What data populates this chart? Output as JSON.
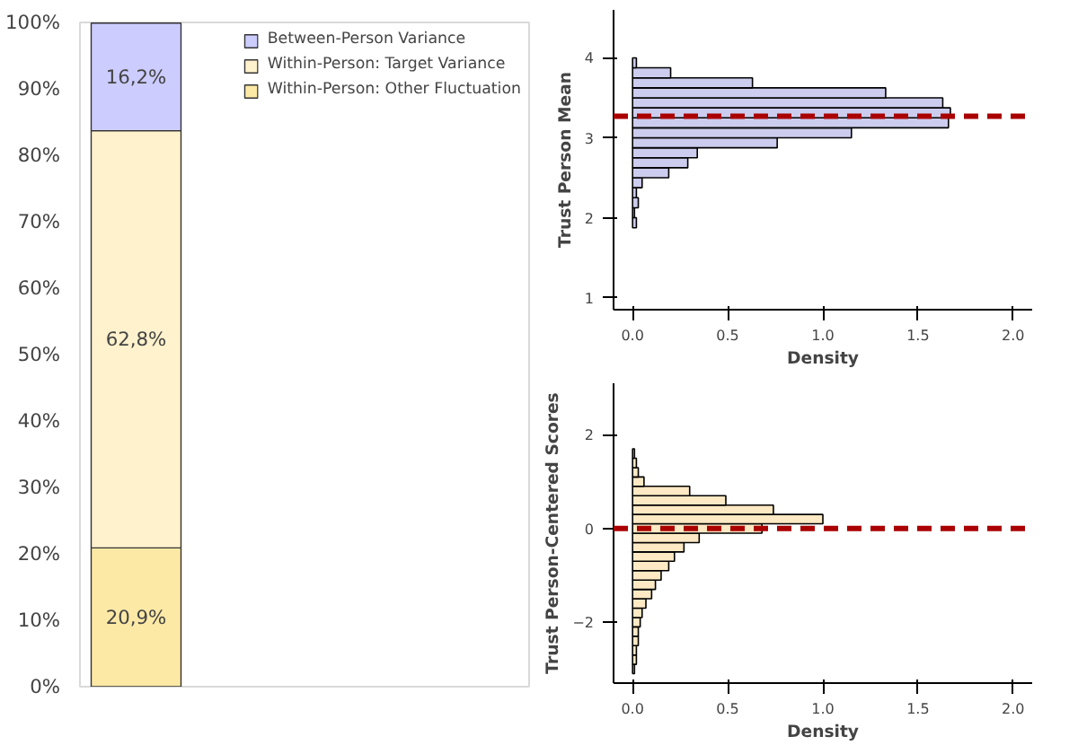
{
  "chart_data": [
    {
      "type": "bar",
      "stacked": true,
      "categories": [
        null
      ],
      "ylim": [
        0,
        100
      ],
      "yticks": [
        {
          "value": 0,
          "label": "0%"
        },
        {
          "value": 10,
          "label": "10%"
        },
        {
          "value": 20,
          "label": "20%"
        },
        {
          "value": 30,
          "label": "30%"
        },
        {
          "value": 40,
          "label": "40%"
        },
        {
          "value": 50,
          "label": "50%"
        },
        {
          "value": 60,
          "label": "60%"
        },
        {
          "value": 70,
          "label": "70%"
        },
        {
          "value": 80,
          "label": "80%"
        },
        {
          "value": 90,
          "label": "90%"
        },
        {
          "value": 100,
          "label": "100%"
        }
      ],
      "tick_labels": "y",
      "grid": false,
      "legend": "top",
      "series": [
        {
          "name": "Within-Person: Other Fluctuation",
          "color": "#fde9a6",
          "values": [
            20.9
          ],
          "value_labels": [
            "20,9%"
          ]
        },
        {
          "name": "Within-Person: Target Variance",
          "color": "#fff2cc",
          "values": [
            62.8
          ],
          "value_labels": [
            "62,8%"
          ]
        },
        {
          "name": "Between-Person Variance",
          "color": "#ccccff",
          "values": [
            16.2
          ],
          "value_labels": [
            "16,2%"
          ]
        }
      ]
    },
    {
      "type": "histogram",
      "orientation": "horizontal",
      "xlabel": "Density",
      "ylabel": "Trust Person Mean",
      "color": "#ccccee",
      "bins": [
        1.875,
        2.0,
        2.125,
        2.25,
        2.375,
        2.5,
        2.625,
        2.75,
        2.875,
        3.0,
        3.125,
        3.25,
        3.375,
        3.5,
        3.625,
        3.75,
        3.875,
        4.0
      ],
      "values": [
        0.02,
        0.01,
        0.03,
        0.02,
        0.05,
        0.19,
        0.29,
        0.34,
        0.76,
        1.15,
        1.66,
        1.67,
        1.63,
        1.33,
        0.63,
        0.2,
        0.02
      ],
      "xlim": [
        -0.1,
        2.1
      ],
      "xticks": [
        {
          "value": 0,
          "label": "0.0"
        },
        {
          "value": 0.5,
          "label": "0.5"
        },
        {
          "value": 1,
          "label": "1.0"
        },
        {
          "value": 1.5,
          "label": "1.5"
        },
        {
          "value": 2,
          "label": "2.0"
        }
      ],
      "ylim": [
        0.85,
        4.6
      ],
      "yticks": [
        1,
        2,
        3,
        4
      ],
      "grid": false,
      "ref_lines": [
        {
          "axis": "y",
          "value": 3.27,
          "color": "#aa0000",
          "line_style": "dashed"
        }
      ]
    },
    {
      "type": "histogram",
      "orientation": "horizontal",
      "xlabel": "Density",
      "ylabel": "Trust Person-Centered Scores",
      "color": "#fde9c4",
      "bins": [
        -3.1,
        -2.9,
        -2.7,
        -2.5,
        -2.3,
        -2.1,
        -1.9,
        -1.7,
        -1.5,
        -1.3,
        -1.1,
        -0.9,
        -0.7,
        -0.5,
        -0.3,
        -0.1,
        0.1,
        0.3,
        0.5,
        0.7,
        0.9,
        1.1,
        1.3,
        1.5,
        1.7
      ],
      "values": [
        0.01,
        0.02,
        0.02,
        0.03,
        0.03,
        0.04,
        0.05,
        0.07,
        0.1,
        0.12,
        0.15,
        0.19,
        0.22,
        0.27,
        0.35,
        0.68,
        1.0,
        0.74,
        0.49,
        0.3,
        0.06,
        0.03,
        0.02,
        0.01
      ],
      "xlim": [
        -0.1,
        2.1
      ],
      "xticks": [
        {
          "value": 0,
          "label": "0.0"
        },
        {
          "value": 0.5,
          "label": "0.5"
        },
        {
          "value": 1,
          "label": "1.0"
        },
        {
          "value": 1.5,
          "label": "1.5"
        },
        {
          "value": 2,
          "label": "2.0"
        }
      ],
      "ylim": [
        -3.3,
        3.1
      ],
      "yticks": [
        -2,
        0,
        2
      ],
      "grid": false,
      "ref_lines": [
        {
          "axis": "y",
          "value": 0,
          "color": "#aa0000",
          "line_style": "dashed"
        }
      ]
    }
  ]
}
